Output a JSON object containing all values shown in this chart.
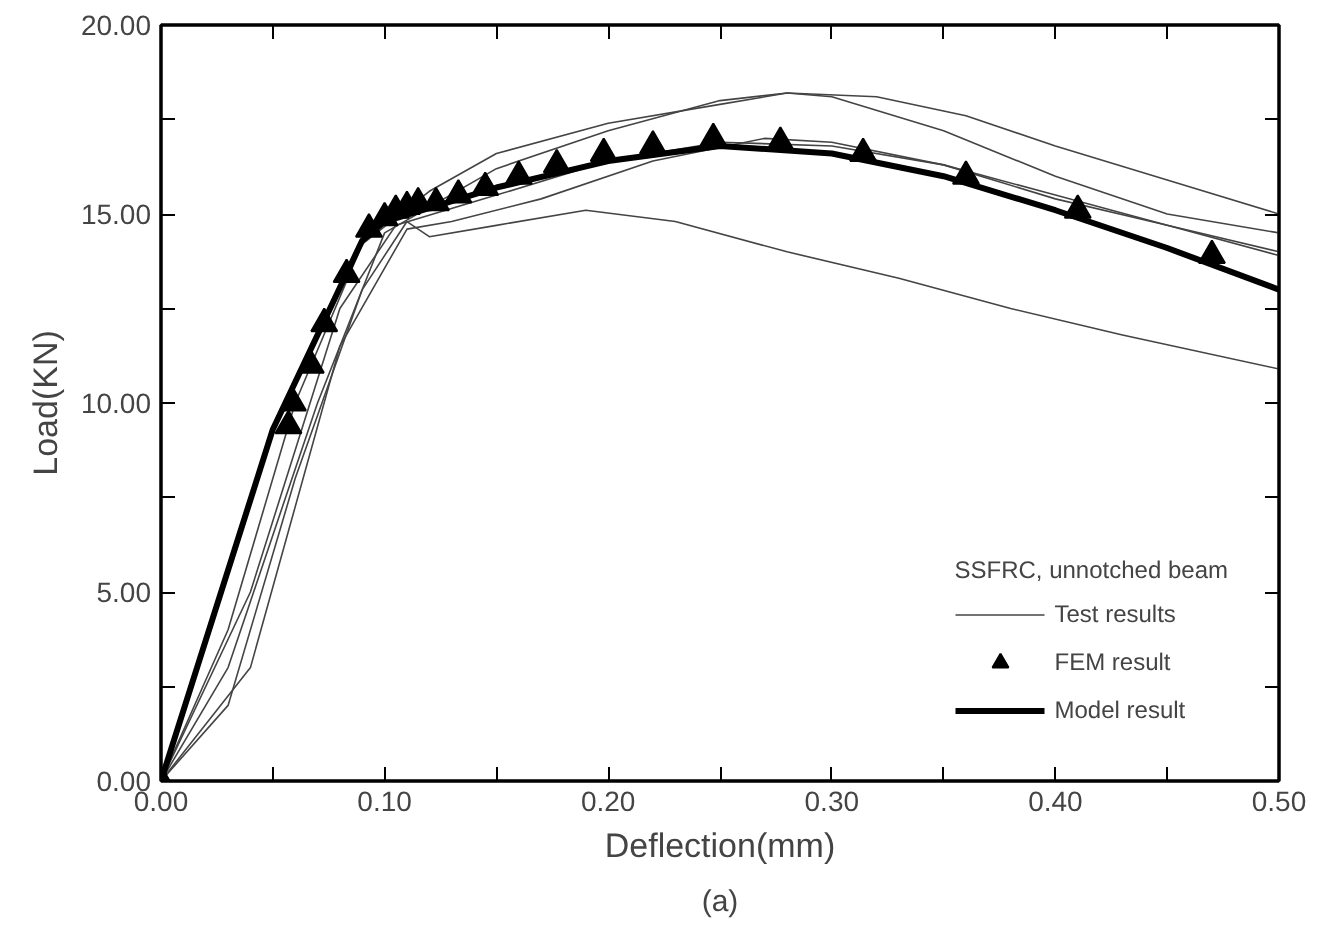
{
  "chart_data": {
    "type": "line",
    "xlabel": "Deflection(mm)",
    "ylabel": "Load(KN)",
    "legend_title": "SSFRC, unnotched beam",
    "annotations": [
      "(a)"
    ],
    "xlim": [
      0,
      0.5
    ],
    "ylim": [
      0,
      20
    ],
    "xticks": [
      {
        "value": 0,
        "label": "0.00"
      },
      {
        "value": 0.05,
        "label": null
      },
      {
        "value": 0.1,
        "label": "0.10"
      },
      {
        "value": 0.15,
        "label": null
      },
      {
        "value": 0.2,
        "label": "0.20"
      },
      {
        "value": 0.25,
        "label": null
      },
      {
        "value": 0.3,
        "label": "0.30"
      },
      {
        "value": 0.35,
        "label": null
      },
      {
        "value": 0.4,
        "label": "0.40"
      },
      {
        "value": 0.45,
        "label": null
      },
      {
        "value": 0.5,
        "label": "0.50"
      }
    ],
    "yticks": [
      {
        "value": 0,
        "label": "0.00"
      },
      {
        "value": 2.5,
        "label": null
      },
      {
        "value": 5,
        "label": "5.00"
      },
      {
        "value": 7.5,
        "label": null
      },
      {
        "value": 10,
        "label": "10.00"
      },
      {
        "value": 12.5,
        "label": null
      },
      {
        "value": 15,
        "label": "15.00"
      },
      {
        "value": 17.5,
        "label": null
      },
      {
        "value": 20,
        "label": "20.00"
      }
    ],
    "grid": false,
    "legend": "bottom right",
    "marker": "none",
    "series": [
      {
        "name": "Test results",
        "color": "#444444",
        "x": [
          0,
          0.03,
          0.06,
          0.09,
          0.12,
          0.15,
          0.2,
          0.25,
          0.28,
          0.32,
          0.36,
          0.4,
          0.45,
          0.5
        ],
        "values": [
          0,
          4,
          10,
          14.2,
          15.6,
          16.6,
          17.4,
          17.9,
          18.2,
          18.1,
          17.6,
          16.8,
          15.9,
          15.0
        ]
      },
      {
        "color": "#444444",
        "x": [
          0,
          0.03,
          0.07,
          0.1,
          0.15,
          0.2,
          0.25,
          0.28,
          0.3,
          0.35,
          0.4,
          0.45,
          0.5
        ],
        "values": [
          0,
          3,
          10,
          14.5,
          16.2,
          17.2,
          18.0,
          18.2,
          18.1,
          17.2,
          16.0,
          15.0,
          14.5
        ]
      },
      {
        "color": "#444444",
        "x": [
          0,
          0.04,
          0.08,
          0.105,
          0.15,
          0.2,
          0.25,
          0.3,
          0.35,
          0.4,
          0.45,
          0.5
        ],
        "values": [
          0,
          5,
          12.5,
          14.7,
          15.5,
          16.4,
          16.9,
          16.8,
          16.3,
          15.5,
          14.7,
          14.0
        ]
      },
      {
        "color": "#444444",
        "x": [
          0,
          0.03,
          0.06,
          0.09,
          0.11,
          0.12,
          0.15,
          0.19,
          0.23,
          0.28,
          0.33,
          0.38,
          0.43,
          0.5
        ],
        "values": [
          0,
          2,
          8,
          13,
          14.8,
          14.4,
          14.7,
          15.1,
          14.8,
          14.0,
          13.3,
          12.5,
          11.8,
          10.9
        ]
      },
      {
        "color": "#444444",
        "x": [
          0,
          0.04,
          0.08,
          0.11,
          0.13,
          0.17,
          0.22,
          0.27,
          0.3,
          0.35,
          0.4,
          0.45,
          0.5
        ],
        "values": [
          0,
          3,
          11.5,
          14.6,
          14.8,
          15.4,
          16.4,
          17.0,
          16.9,
          16.3,
          15.4,
          14.7,
          13.9
        ]
      },
      {
        "name": "FEM result",
        "type": "scatter",
        "marker": "triangle",
        "color": "#000000",
        "x": [
          0,
          0.057,
          0.059,
          0.067,
          0.073,
          0.083,
          0.093,
          0.1,
          0.105,
          0.11,
          0.115,
          0.123,
          0.133,
          0.145,
          0.16,
          0.177,
          0.198,
          0.22,
          0.247,
          0.277,
          0.314,
          0.36,
          0.41,
          0.47
        ],
        "values": [
          0,
          9.4,
          10.0,
          11.0,
          12.1,
          13.4,
          14.6,
          14.9,
          15.1,
          15.2,
          15.3,
          15.3,
          15.5,
          15.7,
          16.0,
          16.3,
          16.6,
          16.8,
          17.0,
          16.9,
          16.6,
          16.0,
          15.1,
          13.9
        ]
      },
      {
        "name": "Model result",
        "color": "#000000",
        "x": [
          0,
          0.05,
          0.09,
          0.1,
          0.15,
          0.2,
          0.25,
          0.3,
          0.35,
          0.4,
          0.45,
          0.5
        ],
        "values": [
          0,
          9.3,
          14.3,
          14.8,
          15.7,
          16.4,
          16.8,
          16.6,
          16.0,
          15.1,
          14.1,
          13.0
        ]
      }
    ]
  }
}
